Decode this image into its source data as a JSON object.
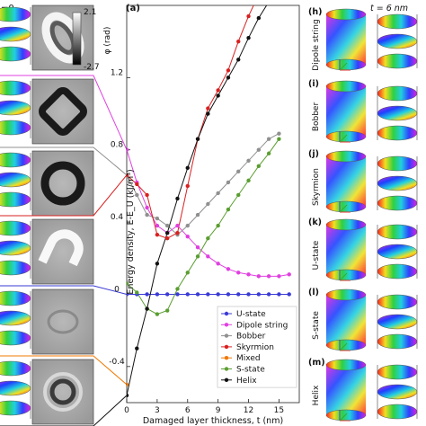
{
  "left_panels": {
    "colorbar_max": "2.1",
    "colorbar_min": "-2.7",
    "colorbar_label": "φ (rad)",
    "top_cut_label": "=0"
  },
  "right_panels": {
    "time_label": "t = 6 nm",
    "panels": [
      {
        "letter": "(h)",
        "label": "Dipole string"
      },
      {
        "letter": "(i)",
        "label": "Bobber"
      },
      {
        "letter": "(j)",
        "label": "Skyrmion"
      },
      {
        "letter": "(k)",
        "label": "U-state"
      },
      {
        "letter": "(l)",
        "label": "S-state"
      },
      {
        "letter": "(m)",
        "label": "Helix"
      }
    ]
  },
  "chart_data": {
    "type": "line",
    "panel_label": "(a)",
    "title": "",
    "xlabel": "Damaged layer thickness, t (nm)",
    "ylabel": "Energy density, E-E_U (kJ/m³)",
    "xlim": [
      0,
      17
    ],
    "ylim": [
      -0.6,
      1.6
    ],
    "xticks": [
      0,
      3,
      6,
      9,
      12,
      15
    ],
    "yticks": [
      -0.4,
      0,
      0.4,
      0.8,
      1.2
    ],
    "ytick_labels": [
      "-0.4",
      "0",
      "0.4",
      "0.8",
      "1.2"
    ],
    "grid": false,
    "legend_position": "bottom-right",
    "series": [
      {
        "name": "U-state",
        "color": "#3a3ad6",
        "marker": "circle",
        "x": [
          0,
          1,
          2,
          3,
          4,
          5,
          6,
          7,
          8,
          9,
          10,
          11,
          12,
          13,
          14,
          15,
          16
        ],
        "y": [
          0,
          0,
          0,
          0,
          0,
          0,
          0,
          0,
          0,
          0,
          0,
          0,
          0,
          0,
          0,
          0,
          0
        ]
      },
      {
        "name": "Dipole string",
        "color": "#e040e0",
        "marker": "circle",
        "x": [
          0,
          1,
          2,
          3,
          4,
          5,
          6,
          7,
          8,
          9,
          10,
          11,
          12,
          13,
          14,
          15,
          16
        ],
        "y": [
          0.8,
          0.62,
          0.48,
          0.38,
          0.34,
          0.38,
          0.32,
          0.26,
          0.21,
          0.17,
          0.14,
          0.12,
          0.11,
          0.1,
          0.1,
          0.1,
          0.11
        ]
      },
      {
        "name": "Bobber",
        "color": "#909090",
        "marker": "circle",
        "x": [
          0,
          1,
          2,
          3,
          4,
          5,
          6,
          7,
          8,
          9,
          10,
          11,
          12,
          13,
          14,
          15
        ],
        "y": [
          0.66,
          0.55,
          0.44,
          0.42,
          0.38,
          0.33,
          0.38,
          0.44,
          0.5,
          0.56,
          0.62,
          0.68,
          0.74,
          0.8,
          0.86,
          0.89
        ]
      },
      {
        "name": "Skyrmion",
        "color": "#d92020",
        "marker": "circle",
        "x": [
          0,
          1,
          2,
          3,
          4,
          5,
          6,
          7,
          8,
          9,
          10,
          11,
          12,
          13
        ],
        "y": [
          0.66,
          0.61,
          0.55,
          0.33,
          0.31,
          0.34,
          0.6,
          0.86,
          1.03,
          1.13,
          1.24,
          1.4,
          1.54,
          1.66
        ]
      },
      {
        "name": "Mixed",
        "color": "#f07800",
        "marker": "circle",
        "x": [
          0
        ],
        "y": [
          -0.5
        ]
      },
      {
        "name": "S-state",
        "color": "#5a9e30",
        "marker": "circle",
        "x": [
          0,
          1,
          2,
          3,
          4,
          5,
          6,
          7,
          8,
          9,
          10,
          11,
          12,
          13,
          14,
          15
        ],
        "y": [
          0.06,
          0.01,
          -0.08,
          -0.11,
          -0.09,
          0.03,
          0.12,
          0.21,
          0.31,
          0.38,
          0.47,
          0.55,
          0.63,
          0.71,
          0.78,
          0.86
        ]
      },
      {
        "name": "Helix",
        "color": "#111111",
        "marker": "circle",
        "x": [
          0,
          1,
          2,
          3,
          4,
          5,
          6,
          7,
          8,
          9,
          10,
          11,
          12,
          13,
          14
        ],
        "y": [
          -0.56,
          -0.3,
          -0.08,
          0.17,
          0.34,
          0.53,
          0.7,
          0.86,
          1.0,
          1.1,
          1.2,
          1.3,
          1.42,
          1.53,
          1.62
        ]
      }
    ]
  }
}
